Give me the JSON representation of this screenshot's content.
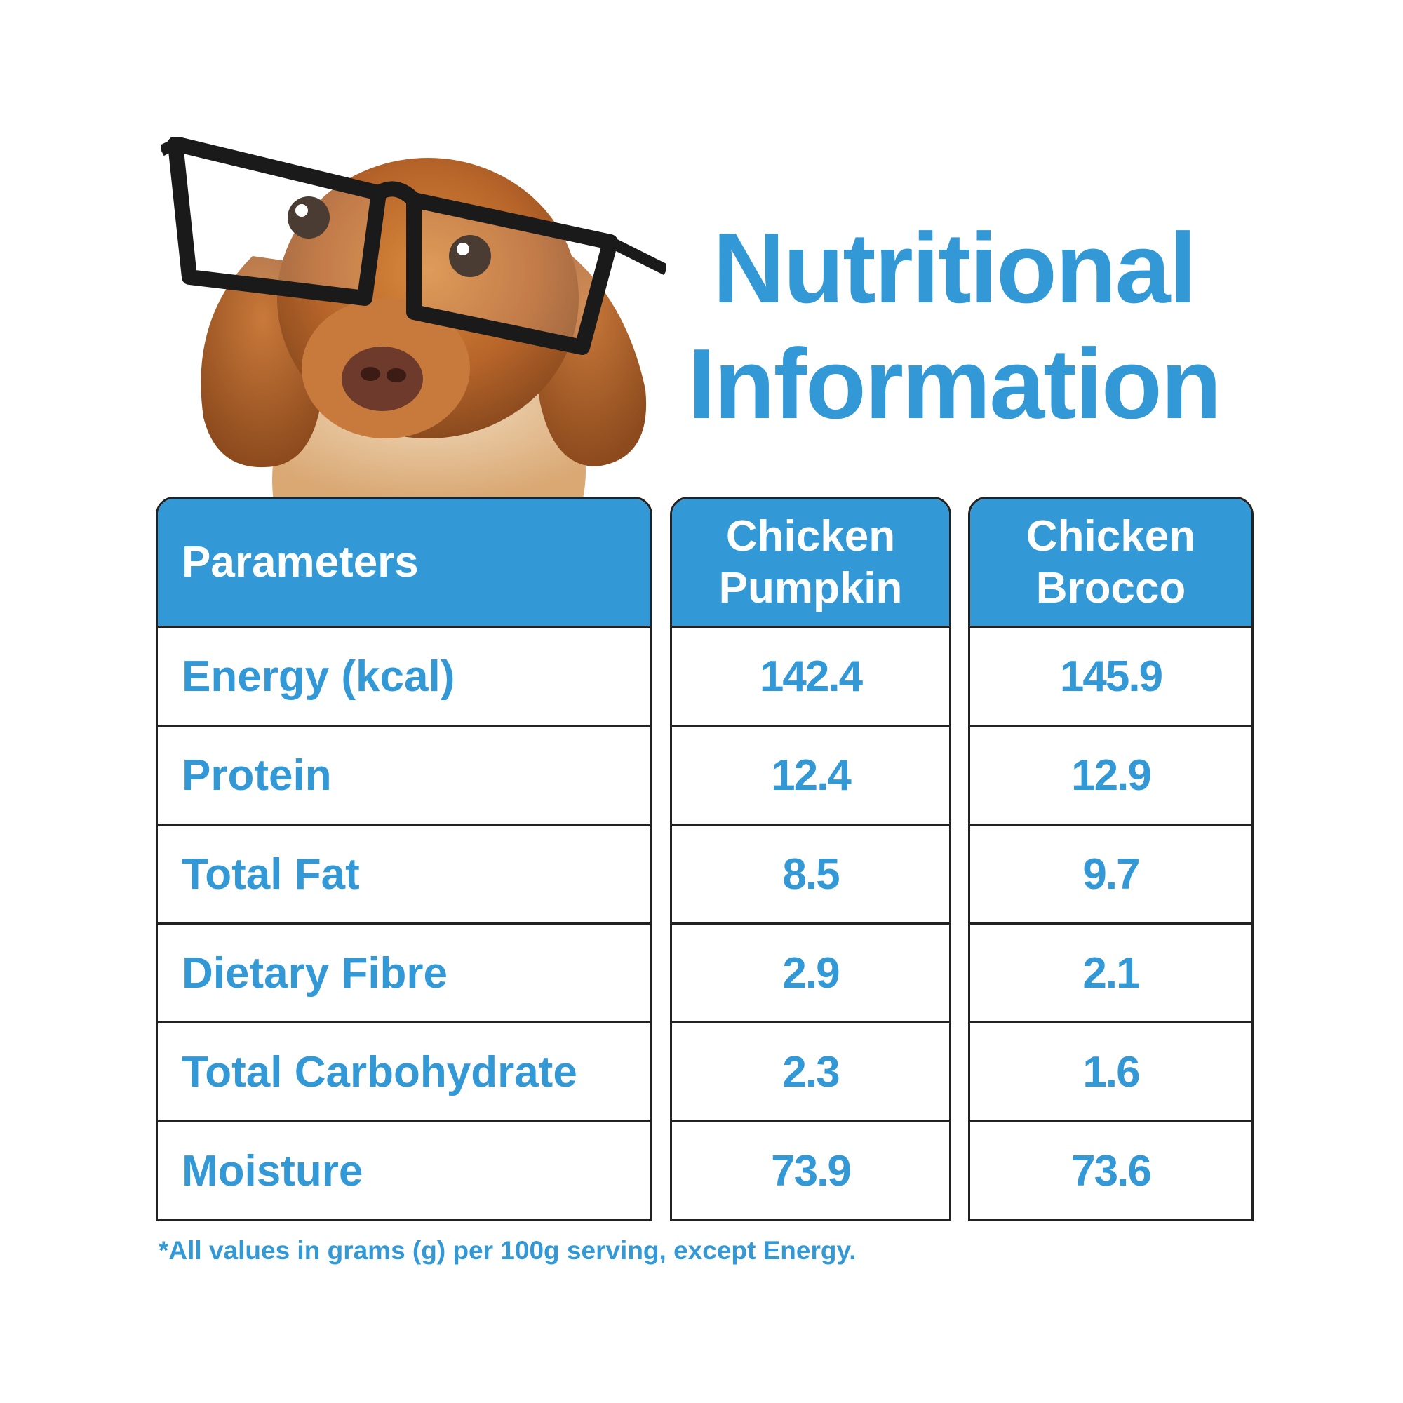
{
  "title": {
    "line1": "Nutritional",
    "line2": "Information"
  },
  "table": {
    "headers": {
      "parameters": "Parameters",
      "product_a": "Chicken\nPumpkin",
      "product_b": "Chicken\nBrocco"
    },
    "rows": [
      {
        "parameter": "Energy (kcal)",
        "a": "142.4",
        "b": "145.9"
      },
      {
        "parameter": "Protein",
        "a": "12.4",
        "b": "12.9"
      },
      {
        "parameter": "Total Fat",
        "a": "8.5",
        "b": "9.7"
      },
      {
        "parameter": "Dietary Fibre",
        "a": "2.9",
        "b": "2.1"
      },
      {
        "parameter": "Total Carbohydrate",
        "a": "2.3",
        "b": "1.6"
      },
      {
        "parameter": "Moisture",
        "a": "73.9",
        "b": "73.6"
      }
    ]
  },
  "footnote": "*All values in grams (g) per 100g serving, except Energy.",
  "colors": {
    "accent": "#3399d6",
    "border": "#222222",
    "background": "#ffffff"
  },
  "illustration": "dog-with-glasses"
}
